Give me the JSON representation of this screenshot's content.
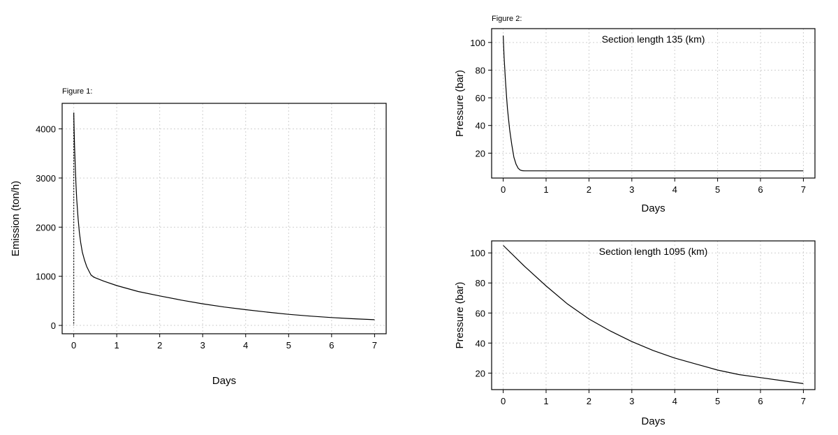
{
  "chart_data": [
    {
      "type": "line",
      "caption": "Figure 1:",
      "annotation": "",
      "xlabel": "Days",
      "ylabel": "Emission (ton/h)",
      "xlim": [
        -0.27,
        7.27
      ],
      "ylim": [
        -170,
        4520
      ],
      "x_ticks": [
        0,
        1,
        2,
        3,
        4,
        5,
        6,
        7
      ],
      "y_ticks": [
        0,
        1000,
        2000,
        3000,
        4000
      ],
      "grid": true,
      "dashed_vertical_at_x": 0,
      "series": [
        {
          "x": [
            0,
            0.005,
            0.01,
            0.02,
            0.03,
            0.05,
            0.07,
            0.1,
            0.13,
            0.16,
            0.2,
            0.25,
            0.3,
            0.35,
            0.4,
            0.47,
            0.7,
            1,
            1.5,
            2,
            2.5,
            3,
            3.5,
            4,
            4.5,
            5,
            5.5,
            6,
            6.5,
            7
          ],
          "y": [
            4330,
            4150,
            3950,
            3630,
            3350,
            2900,
            2560,
            2180,
            1900,
            1690,
            1490,
            1330,
            1200,
            1110,
            1030,
            980,
            900,
            810,
            690,
            600,
            515,
            440,
            375,
            320,
            270,
            225,
            190,
            160,
            135,
            115
          ]
        }
      ]
    },
    {
      "type": "line",
      "caption": "Figure 2:",
      "annotation": "Section length 135 (km)",
      "xlabel": "Days",
      "ylabel": "Pressure (bar)",
      "xlim": [
        -0.27,
        7.27
      ],
      "ylim": [
        2,
        110
      ],
      "x_ticks": [
        0,
        1,
        2,
        3,
        4,
        5,
        6,
        7
      ],
      "y_ticks": [
        20,
        40,
        60,
        80,
        100
      ],
      "grid": true,
      "series": [
        {
          "x": [
            0,
            0.02,
            0.05,
            0.08,
            0.1,
            0.15,
            0.2,
            0.25,
            0.3,
            0.35,
            0.4,
            0.45,
            0.5,
            0.7,
            1,
            2,
            3,
            4,
            5,
            6,
            7
          ],
          "y": [
            105,
            90,
            74,
            60,
            52,
            37,
            26,
            17,
            12,
            9,
            7.7,
            7.3,
            7.2,
            7.2,
            7.2,
            7.2,
            7.2,
            7.2,
            7.2,
            7.2,
            7.2
          ]
        }
      ]
    },
    {
      "type": "line",
      "caption": "",
      "annotation": "Section length 1095 (km)",
      "xlabel": "Days",
      "ylabel": "Pressure (bar)",
      "xlim": [
        -0.27,
        7.27
      ],
      "ylim": [
        9,
        108
      ],
      "x_ticks": [
        0,
        1,
        2,
        3,
        4,
        5,
        6,
        7
      ],
      "y_ticks": [
        20,
        40,
        60,
        80,
        100
      ],
      "grid": true,
      "series": [
        {
          "x": [
            0,
            0.5,
            1,
            1.5,
            2,
            2.5,
            3,
            3.5,
            4,
            4.5,
            5,
            5.5,
            6,
            6.5,
            7
          ],
          "y": [
            105,
            91,
            78,
            66,
            56,
            48,
            41,
            35,
            30,
            26,
            22,
            19,
            17,
            15,
            13
          ]
        }
      ]
    }
  ]
}
